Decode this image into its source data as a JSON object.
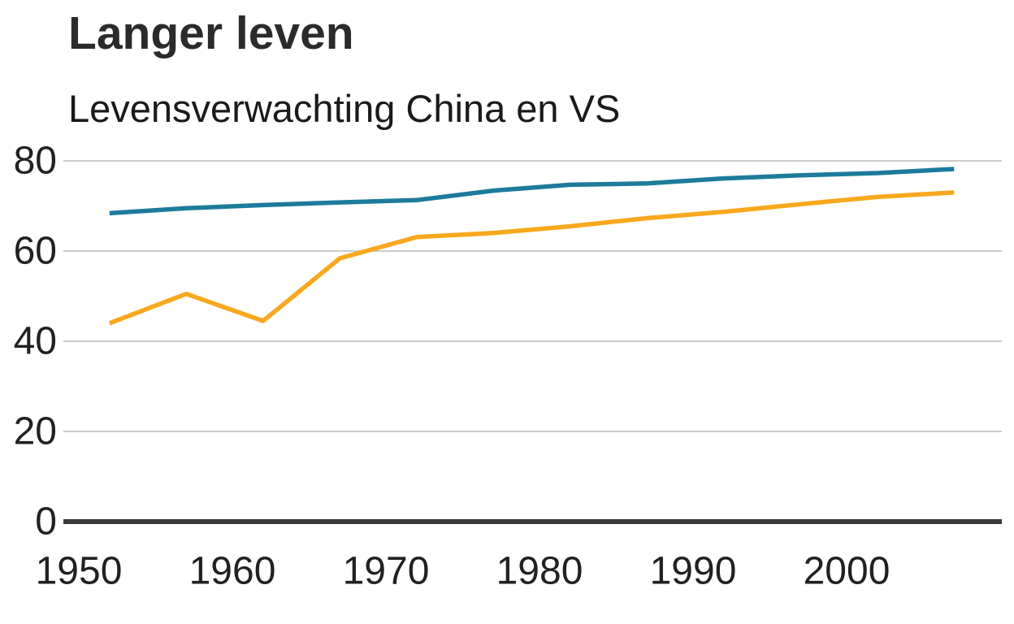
{
  "header": {
    "title": "Langer leven",
    "subtitle": "Levensverwachting China en VS"
  },
  "chart_data": {
    "type": "line",
    "title": "Langer leven",
    "subtitle": "Levensverwachting China en VS",
    "x": [
      1952,
      1957,
      1962,
      1967,
      1972,
      1977,
      1982,
      1987,
      1992,
      1997,
      2002,
      2007
    ],
    "series": [
      {
        "name": "VS",
        "color": "#1d7b9b",
        "values": [
          68.4,
          69.5,
          70.2,
          70.8,
          71.3,
          73.4,
          74.7,
          75.0,
          76.1,
          76.8,
          77.3,
          78.2
        ]
      },
      {
        "name": "China",
        "color": "#f8a81e",
        "values": [
          44.0,
          50.5,
          44.5,
          58.4,
          63.1,
          64.0,
          65.5,
          67.3,
          68.7,
          70.4,
          72.0,
          73.0
        ]
      }
    ],
    "xticks": [
      1950,
      1960,
      1970,
      1980,
      1990,
      2000
    ],
    "yticks": [
      0,
      20,
      40,
      60,
      80
    ],
    "xlim": [
      1949,
      2010
    ],
    "ylim": [
      0,
      85
    ],
    "grid": "horizontal",
    "legend": "none",
    "colors": {
      "gridline": "#cbcbcb",
      "axis": "#3a3a3a",
      "tick_label": "#212121"
    }
  }
}
